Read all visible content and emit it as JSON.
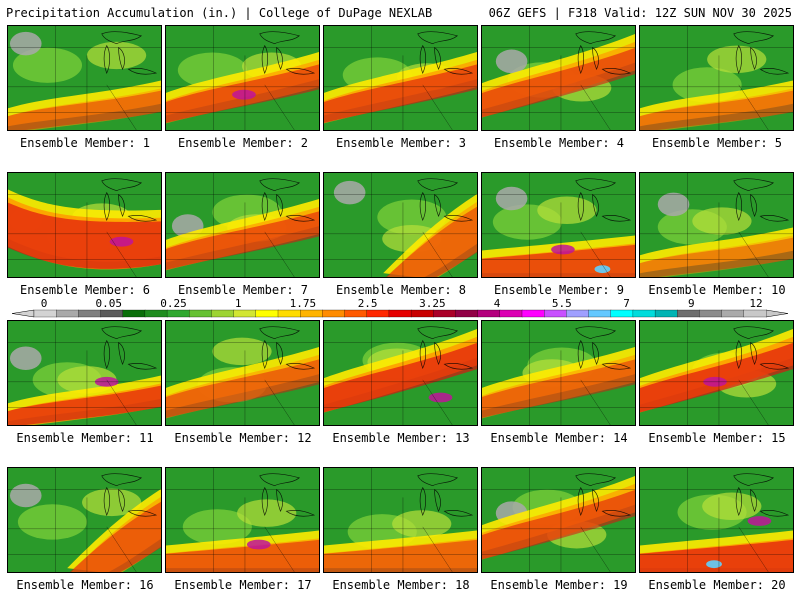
{
  "header": {
    "title_left": "Precipitation Accumulation (in.) | College of DuPage NEXLAB",
    "title_right": "06Z GEFS | F318 Valid: 12Z SUN NOV 30 2025"
  },
  "colorbar": {
    "tick_labels": [
      "0",
      "0.05",
      "0.25",
      "1",
      "1.75",
      "2.5",
      "3.25",
      "4",
      "5.5",
      "7",
      "9",
      "12"
    ],
    "colors": [
      "#d3d3d3",
      "#a9a9a9",
      "#7f7f7f",
      "#5c5c5c",
      "#0a6e0a",
      "#1e8c1e",
      "#2fa82f",
      "#66c133",
      "#9dd433",
      "#d2e633",
      "#ffff00",
      "#ffdc00",
      "#ffb400",
      "#ff8c00",
      "#ff5a00",
      "#ff2800",
      "#e60000",
      "#c80000",
      "#aa0028",
      "#910046",
      "#b4007d",
      "#dc00b4",
      "#ff00ff",
      "#c850ff",
      "#a0a0ff",
      "#64c8ff",
      "#00ffff",
      "#00dcdc",
      "#00b4b4",
      "#6e6e6e",
      "#8c8c8c",
      "#aaaaaa",
      "#c8c8c8"
    ]
  },
  "panels": [
    {
      "label": "Ensemble Member: 1"
    },
    {
      "label": "Ensemble Member: 2"
    },
    {
      "label": "Ensemble Member: 3"
    },
    {
      "label": "Ensemble Member: 4"
    },
    {
      "label": "Ensemble Member: 5"
    },
    {
      "label": "Ensemble Member: 6"
    },
    {
      "label": "Ensemble Member: 7"
    },
    {
      "label": "Ensemble Member: 8"
    },
    {
      "label": "Ensemble Member: 9"
    },
    {
      "label": "Ensemble Member: 10"
    },
    {
      "label": "Ensemble Member: 11"
    },
    {
      "label": "Ensemble Member: 12"
    },
    {
      "label": "Ensemble Member: 13"
    },
    {
      "label": "Ensemble Member: 14"
    },
    {
      "label": "Ensemble Member: 15"
    },
    {
      "label": "Ensemble Member: 16"
    },
    {
      "label": "Ensemble Member: 17"
    },
    {
      "label": "Ensemble Member: 18"
    },
    {
      "label": "Ensemble Member: 19"
    },
    {
      "label": "Ensemble Member: 20"
    }
  ]
}
